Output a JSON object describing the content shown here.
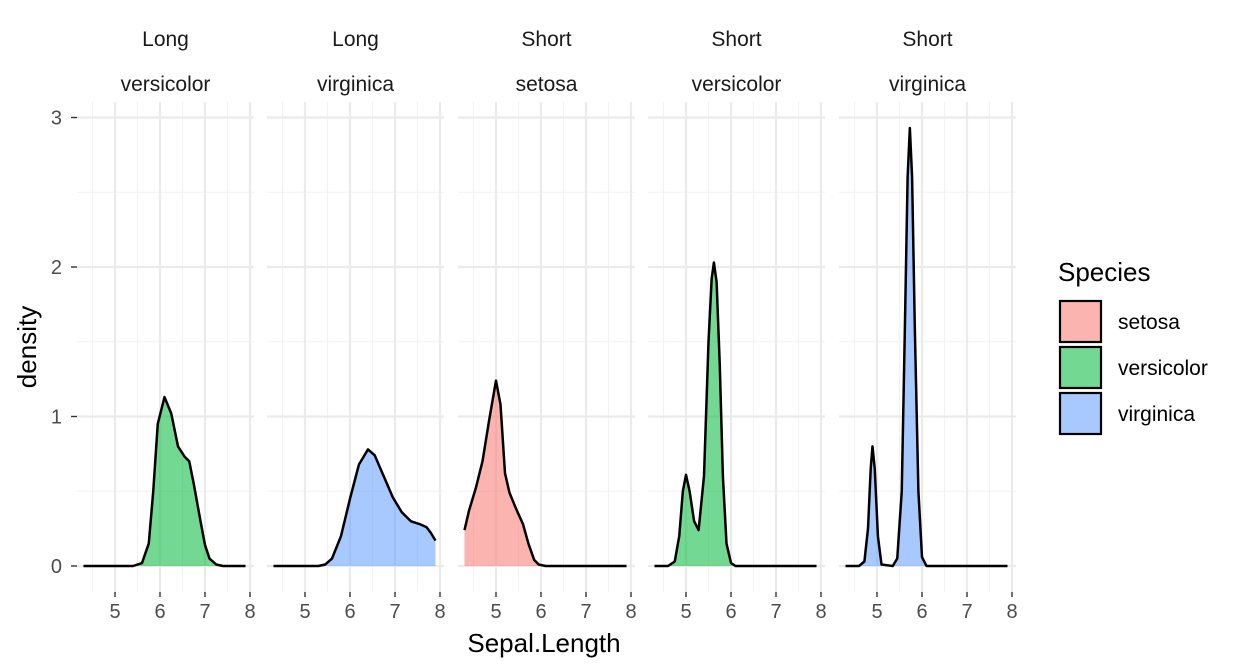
{
  "chart_data": {
    "type": "area",
    "subtype": "faceted-density",
    "xlabel": "Sepal.Length",
    "ylabel": "density",
    "xlim": [
      4.3,
      7.9
    ],
    "ylim": [
      0,
      3
    ],
    "x_ticks": [
      5,
      6,
      7,
      8
    ],
    "y_ticks": [
      0,
      1,
      2,
      3
    ],
    "grid": true,
    "legend": {
      "title": "Species",
      "position": "right",
      "entries": [
        {
          "label": "setosa",
          "color": "#F8766D"
        },
        {
          "label": "versicolor",
          "color": "#00BA38"
        },
        {
          "label": "virginica",
          "color": "#619CFF"
        }
      ]
    },
    "fill_alpha": 0.55,
    "panels": [
      {
        "strip": [
          "Long",
          "versicolor"
        ],
        "species": "versicolor",
        "points": [
          [
            4.3,
            0
          ],
          [
            5.4,
            0
          ],
          [
            5.6,
            0.02
          ],
          [
            5.75,
            0.15
          ],
          [
            5.85,
            0.5
          ],
          [
            5.95,
            0.95
          ],
          [
            6.1,
            1.13
          ],
          [
            6.25,
            1.02
          ],
          [
            6.4,
            0.8
          ],
          [
            6.55,
            0.73
          ],
          [
            6.65,
            0.7
          ],
          [
            6.75,
            0.55
          ],
          [
            6.9,
            0.3
          ],
          [
            7.0,
            0.14
          ],
          [
            7.1,
            0.05
          ],
          [
            7.25,
            0.01
          ],
          [
            7.4,
            0
          ],
          [
            7.9,
            0
          ]
        ]
      },
      {
        "strip": [
          "Long",
          "virginica"
        ],
        "species": "virginica",
        "points": [
          [
            4.3,
            0
          ],
          [
            5.3,
            0
          ],
          [
            5.45,
            0.01
          ],
          [
            5.6,
            0.05
          ],
          [
            5.8,
            0.2
          ],
          [
            6.0,
            0.45
          ],
          [
            6.2,
            0.68
          ],
          [
            6.4,
            0.78
          ],
          [
            6.55,
            0.74
          ],
          [
            6.75,
            0.6
          ],
          [
            6.95,
            0.46
          ],
          [
            7.15,
            0.36
          ],
          [
            7.35,
            0.3
          ],
          [
            7.55,
            0.28
          ],
          [
            7.7,
            0.26
          ],
          [
            7.8,
            0.22
          ],
          [
            7.9,
            0.17
          ]
        ]
      },
      {
        "strip": [
          "Short",
          "setosa"
        ],
        "species": "setosa",
        "points": [
          [
            4.3,
            0.24
          ],
          [
            4.4,
            0.37
          ],
          [
            4.55,
            0.52
          ],
          [
            4.7,
            0.7
          ],
          [
            4.85,
            0.98
          ],
          [
            5.0,
            1.24
          ],
          [
            5.1,
            1.08
          ],
          [
            5.2,
            0.62
          ],
          [
            5.3,
            0.49
          ],
          [
            5.45,
            0.38
          ],
          [
            5.6,
            0.28
          ],
          [
            5.72,
            0.15
          ],
          [
            5.85,
            0.04
          ],
          [
            5.95,
            0.01
          ],
          [
            6.1,
            0
          ],
          [
            7.9,
            0
          ]
        ]
      },
      {
        "strip": [
          "Short",
          "versicolor"
        ],
        "species": "versicolor",
        "points": [
          [
            4.3,
            0
          ],
          [
            4.6,
            0
          ],
          [
            4.75,
            0.03
          ],
          [
            4.85,
            0.2
          ],
          [
            4.93,
            0.5
          ],
          [
            5.0,
            0.61
          ],
          [
            5.08,
            0.5
          ],
          [
            5.18,
            0.3
          ],
          [
            5.28,
            0.24
          ],
          [
            5.4,
            0.6
          ],
          [
            5.5,
            1.5
          ],
          [
            5.57,
            1.92
          ],
          [
            5.62,
            2.03
          ],
          [
            5.68,
            1.9
          ],
          [
            5.75,
            1.35
          ],
          [
            5.82,
            0.6
          ],
          [
            5.9,
            0.15
          ],
          [
            6.0,
            0.02
          ],
          [
            6.1,
            0
          ],
          [
            7.9,
            0
          ]
        ]
      },
      {
        "strip": [
          "Short",
          "virginica"
        ],
        "species": "virginica",
        "points": [
          [
            4.3,
            0
          ],
          [
            4.6,
            0
          ],
          [
            4.72,
            0.03
          ],
          [
            4.8,
            0.25
          ],
          [
            4.86,
            0.65
          ],
          [
            4.9,
            0.8
          ],
          [
            4.95,
            0.65
          ],
          [
            5.02,
            0.2
          ],
          [
            5.1,
            0.01
          ],
          [
            5.35,
            0
          ],
          [
            5.45,
            0.05
          ],
          [
            5.55,
            0.5
          ],
          [
            5.62,
            1.6
          ],
          [
            5.68,
            2.6
          ],
          [
            5.73,
            2.93
          ],
          [
            5.78,
            2.6
          ],
          [
            5.84,
            1.6
          ],
          [
            5.92,
            0.5
          ],
          [
            6.0,
            0.06
          ],
          [
            6.1,
            0
          ],
          [
            7.9,
            0
          ]
        ]
      }
    ]
  }
}
